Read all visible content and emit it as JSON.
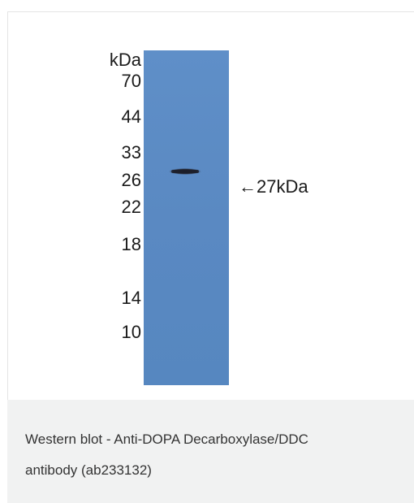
{
  "figure": {
    "markers": {
      "unit": "kDa",
      "values": [
        "70",
        "44",
        "33",
        "26",
        "22",
        "18",
        "14",
        "10"
      ]
    },
    "band_annotation": "←27kDa",
    "colors": {
      "membrane": "#5b8bc4",
      "band": "#1c1f2a"
    }
  },
  "caption": {
    "line1": "Western blot - Anti-DOPA Decarboxylase/DDC",
    "line2": "antibody (ab233132)"
  }
}
